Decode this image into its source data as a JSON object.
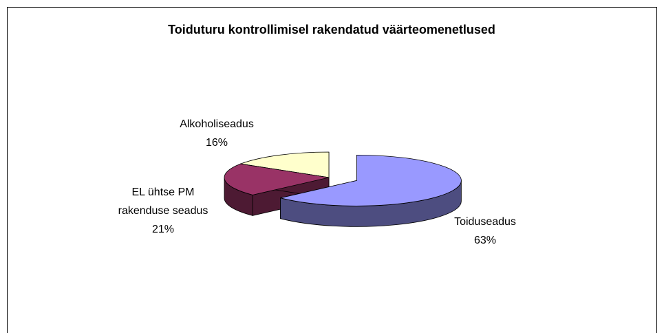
{
  "chart_data": {
    "type": "pie",
    "title": "Toiduturu kontrollimisel rakendatud väärteomenetlused",
    "categories": [
      "Toiduseadus",
      "EL ühtse PM rakenduse seadus",
      "Alkoholiseadus"
    ],
    "values": [
      63,
      21,
      16
    ],
    "value_labels": [
      "63%",
      "21%",
      "16%"
    ],
    "colors": [
      "#9999FF",
      "#993366",
      "#FFFFCC"
    ]
  }
}
